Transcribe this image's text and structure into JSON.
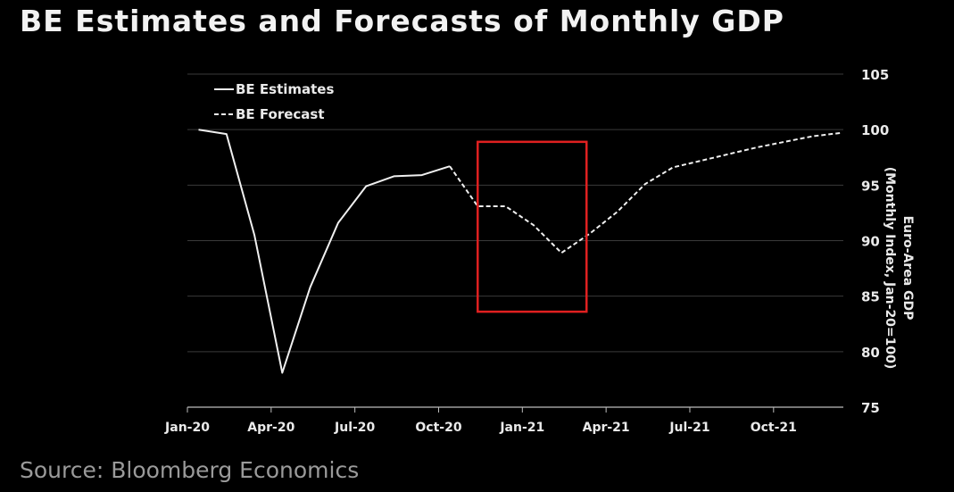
{
  "title": "BE Estimates and Forecasts of Monthly GDP",
  "source": "Source: Bloomberg Economics",
  "colors": {
    "background": "#000000",
    "line": "#f0f0f0",
    "grid": "#3a3a3a",
    "highlight_box": "#e02020"
  },
  "chart_data": {
    "type": "line",
    "title": "BE Estimates and Forecasts of Monthly GDP",
    "ylabel": [
      "Euro-Area GDP",
      "(Monthly Index, Jan-20=100)"
    ],
    "y_axis_side": "right",
    "ylim": [
      75,
      105
    ],
    "yticks": [
      75,
      80,
      85,
      90,
      95,
      100,
      105
    ],
    "x_tick_labels": [
      "Jan-20",
      "Apr-20",
      "Jul-20",
      "Oct-20",
      "Jan-21",
      "Apr-21",
      "Jul-21",
      "Oct-21"
    ],
    "x_tick_months": [
      0,
      3,
      6,
      9,
      12,
      15,
      18,
      21
    ],
    "xlim_months": [
      0,
      23.5
    ],
    "grid": "horizontal",
    "legend_position": "top-left",
    "series": [
      {
        "name": "BE Estimates",
        "style": "solid",
        "x": [
          "Jan-20",
          "Feb-20",
          "Mar-20",
          "Apr-20",
          "May-20",
          "Jun-20",
          "Jul-20",
          "Aug-20",
          "Sep-20",
          "Oct-20"
        ],
        "x_months": [
          0.4,
          1.4,
          2.4,
          3.4,
          4.4,
          5.4,
          6.4,
          7.4,
          8.4,
          9.4
        ],
        "values": [
          100.0,
          99.6,
          90.5,
          78.1,
          85.8,
          91.6,
          94.9,
          95.8,
          95.9,
          96.7
        ]
      },
      {
        "name": "BE Forecast",
        "style": "dashed",
        "x": [
          "Oct-20",
          "Nov-20",
          "Dec-20",
          "Jan-21",
          "Feb-21",
          "Mar-21",
          "Apr-21",
          "May-21",
          "Jun-21",
          "Jul-21",
          "Aug-21",
          "Sep-21",
          "Oct-21",
          "Nov-21",
          "Dec-21"
        ],
        "x_months": [
          9.4,
          10.4,
          11.4,
          12.4,
          13.4,
          14.4,
          15.4,
          16.4,
          17.4,
          18.4,
          19.4,
          20.4,
          21.4,
          22.4,
          23.4
        ],
        "values": [
          96.7,
          93.1,
          93.1,
          91.4,
          88.9,
          90.6,
          92.6,
          95.1,
          96.6,
          97.2,
          97.8,
          98.4,
          98.9,
          99.4,
          99.7
        ]
      }
    ],
    "annotation": {
      "type": "box",
      "x_months": [
        10.4,
        14.3
      ],
      "y_values": [
        83.6,
        98.9
      ]
    }
  }
}
